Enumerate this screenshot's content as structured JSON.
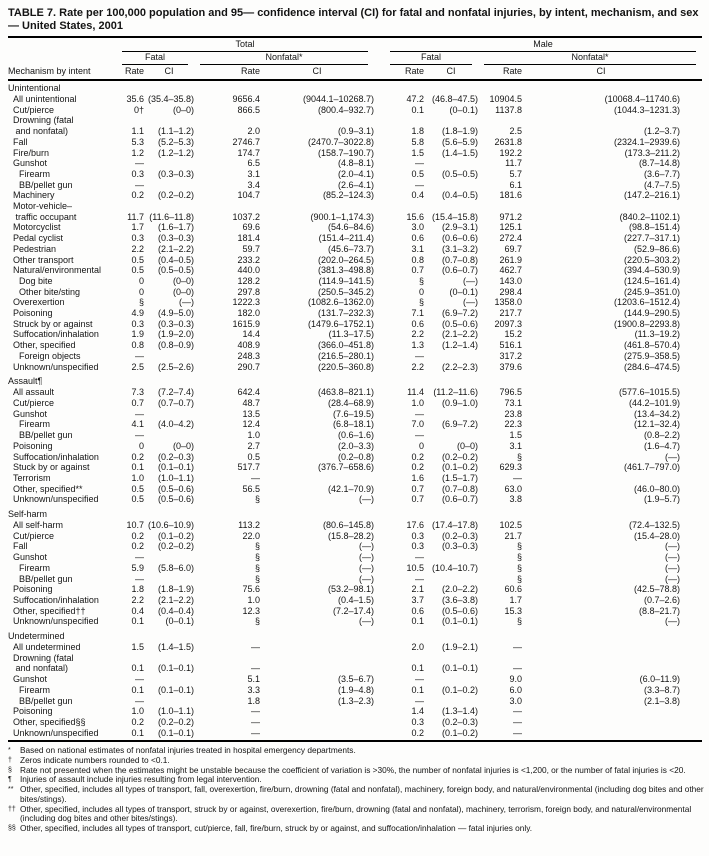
{
  "title": "TABLE 7. Rate per 100,000 population and 95— confidence interval (CI) for fatal and nonfatal injuries, by intent, mechanism, and sex — United States, 2001",
  "table_header": {
    "row_label": "Mechanism by intent",
    "col_groups": [
      {
        "label": "Total"
      },
      {
        "label": "Male"
      }
    ],
    "sub_groups": [
      "Fatal",
      "Nonfatal*"
    ],
    "leaf_cols": [
      "Rate",
      "CI"
    ]
  },
  "sections": [
    {
      "name": "Unintentional",
      "rows": [
        {
          "label": "All unintentional",
          "indent": 1,
          "cells": [
            "35.6",
            "(35.4–35.8)",
            "9656.4",
            "(9044.1–10268.7)",
            "47.2",
            "(46.8–47.5)",
            "10904.5",
            "(10068.4–11740.6)"
          ]
        },
        {
          "label": "Cut/pierce",
          "indent": 1,
          "cells": [
            "0†",
            "(0–0)",
            "866.5",
            "(800.4–932.7)",
            "0.1",
            "(0–0.1)",
            "1137.8",
            "(1044.3–1231.3)"
          ]
        },
        {
          "label": "Drowning (fatal\n and nonfatal)",
          "indent": 1,
          "cells": [
            "1.1",
            "(1.1–1.2)",
            "2.0",
            "(0.9–3.1)",
            "1.8",
            "(1.8–1.9)",
            "2.5",
            "(1.2–3.7)"
          ]
        },
        {
          "label": "Fall",
          "indent": 1,
          "cells": [
            "5.3",
            "(5.2–5.3)",
            "2746.7",
            "(2470.7–3022.8)",
            "5.8",
            "(5.6–5.9)",
            "2631.8",
            "(2324.1–2939.6)"
          ]
        },
        {
          "label": "Fire/burn",
          "indent": 1,
          "cells": [
            "1.2",
            "(1.2–1.2)",
            "174.7",
            "(158.7–190.7)",
            "1.5",
            "(1.4–1.5)",
            "192.2",
            "(173.3–211.2)"
          ]
        },
        {
          "label": "Gunshot",
          "indent": 1,
          "cells": [
            "—",
            "",
            "6.5",
            "(4.8–8.1)",
            "—",
            "",
            "11.7",
            "(8.7–14.8)"
          ]
        },
        {
          "label": "Firearm",
          "indent": 2,
          "cells": [
            "0.3",
            "(0.3–0.3)",
            "3.1",
            "(2.0–4.1)",
            "0.5",
            "(0.5–0.5)",
            "5.7",
            "(3.6–7.7)"
          ]
        },
        {
          "label": "BB/pellet gun",
          "indent": 2,
          "cells": [
            "—",
            "",
            "3.4",
            "(2.6–4.1)",
            "—",
            "",
            "6.1",
            "(4.7–7.5)"
          ]
        },
        {
          "label": "Machinery",
          "indent": 1,
          "cells": [
            "0.2",
            "(0.2–0.2)",
            "104.7",
            "(85.2–124.3)",
            "0.4",
            "(0.4–0.5)",
            "181.6",
            "(147.2–216.1)"
          ]
        },
        {
          "label": "Motor-vehicle–\n traffic occupant",
          "indent": 1,
          "cells": [
            "11.7",
            "(11.6–11.8)",
            "1037.2",
            "(900.1–1,174.3)",
            "15.6",
            "(15.4–15.8)",
            "971.2",
            "(840.2–1102.1)"
          ]
        },
        {
          "label": "Motorcyclist",
          "indent": 1,
          "cells": [
            "1.7",
            "(1.6–1.7)",
            "69.6",
            "(54.6–84.6)",
            "3.0",
            "(2.9–3.1)",
            "125.1",
            "(98.8–151.4)"
          ]
        },
        {
          "label": "Pedal cyclist",
          "indent": 1,
          "cells": [
            "0.3",
            "(0.3–0.3)",
            "181.4",
            "(151.4–211.4)",
            "0.6",
            "(0.6–0.6)",
            "272.4",
            "(227.7–317.1)"
          ]
        },
        {
          "label": "Pedestrian",
          "indent": 1,
          "cells": [
            "2.2",
            "(2.1–2.2)",
            "59.7",
            "(45.6–73.7)",
            "3.1",
            "(3.1–3.2)",
            "69.7",
            "(52.9–86.6)"
          ]
        },
        {
          "label": "Other transport",
          "indent": 1,
          "cells": [
            "0.5",
            "(0.4–0.5)",
            "233.2",
            "(202.0–264.5)",
            "0.8",
            "(0.7–0.8)",
            "261.9",
            "(220.5–303.2)"
          ]
        },
        {
          "label": "Natural/environmental",
          "indent": 1,
          "cells": [
            "0.5",
            "(0.5–0.5)",
            "440.0",
            "(381.3–498.8)",
            "0.7",
            "(0.6–0.7)",
            "462.7",
            "(394.4–530.9)"
          ]
        },
        {
          "label": "Dog bite",
          "indent": 2,
          "cells": [
            "0",
            "(0–0)",
            "128.2",
            "(114.9–141.5)",
            "§",
            "(—)",
            "143.0",
            "(124.5–161.4)"
          ]
        },
        {
          "label": "Other bite/sting",
          "indent": 2,
          "cells": [
            "0",
            "(0–0)",
            "297.8",
            "(250.5–345.2)",
            "0",
            "(0–0.1)",
            "298.4",
            "(245.9–351.0)"
          ]
        },
        {
          "label": "Overexertion",
          "indent": 1,
          "cells": [
            "§",
            "(—)",
            "1222.3",
            "(1082.6–1362.0)",
            "§",
            "(—)",
            "1358.0",
            "(1203.6–1512.4)"
          ]
        },
        {
          "label": "Poisoning",
          "indent": 1,
          "cells": [
            "4.9",
            "(4.9–5.0)",
            "182.0",
            "(131.7–232.3)",
            "7.1",
            "(6.9–7.2)",
            "217.7",
            "(144.9–290.5)"
          ]
        },
        {
          "label": "Struck by or against",
          "indent": 1,
          "cells": [
            "0.3",
            "(0.3–0.3)",
            "1615.9",
            "(1479.6–1752.1)",
            "0.6",
            "(0.5–0.6)",
            "2097.3",
            "(1900.8–2293.8)"
          ]
        },
        {
          "label": "Suffocation/inhalation",
          "indent": 1,
          "cells": [
            "1.9",
            "(1.9–2.0)",
            "14.4",
            "(11.3–17.5)",
            "2.2",
            "(2.1–2.2)",
            "15.2",
            "(11.3–19.2)"
          ]
        },
        {
          "label": "Other, specified",
          "indent": 1,
          "cells": [
            "0.8",
            "(0.8–0.9)",
            "408.9",
            "(366.0–451.8)",
            "1.3",
            "(1.2–1.4)",
            "516.1",
            "(461.8–570.4)"
          ]
        },
        {
          "label": "Foreign objects",
          "indent": 2,
          "cells": [
            "—",
            "",
            "248.3",
            "(216.5–280.1)",
            "—",
            "",
            "317.2",
            "(275.9–358.5)"
          ]
        },
        {
          "label": "Unknown/unspecified",
          "indent": 1,
          "cells": [
            "2.5",
            "(2.5–2.6)",
            "290.7",
            "(220.5–360.8)",
            "2.2",
            "(2.2–2.3)",
            "379.6",
            "(284.6–474.5)"
          ]
        }
      ]
    },
    {
      "name": "Assault¶",
      "rows": [
        {
          "label": "All assault",
          "indent": 1,
          "cells": [
            "7.3",
            "(7.2–7.4)",
            "642.4",
            "(463.8–821.1)",
            "11.4",
            "(11.2–11.6)",
            "796.5",
            "(577.6–1015.5)"
          ]
        },
        {
          "label": "Cut/pierce",
          "indent": 1,
          "cells": [
            "0.7",
            "(0.7–0.7)",
            "48.7",
            "(28.4–68.9)",
            "1.0",
            "(0.9–1.0)",
            "73.1",
            "(44.2–101.9)"
          ]
        },
        {
          "label": "Gunshot",
          "indent": 1,
          "cells": [
            "—",
            "",
            "13.5",
            "(7.6–19.5)",
            "—",
            "",
            "23.8",
            "(13.4–34.2)"
          ]
        },
        {
          "label": "Firearm",
          "indent": 2,
          "cells": [
            "4.1",
            "(4.0–4.2)",
            "12.4",
            "(6.8–18.1)",
            "7.0",
            "(6.9–7.2)",
            "22.3",
            "(12.1–32.4)"
          ]
        },
        {
          "label": "BB/pellet gun",
          "indent": 2,
          "cells": [
            "—",
            "",
            "1.0",
            "(0.6–1.6)",
            "—",
            "",
            "1.5",
            "(0.8–2.2)"
          ]
        },
        {
          "label": "Poisoning",
          "indent": 1,
          "cells": [
            "0",
            "(0–0)",
            "2.7",
            "(2.0–3.3)",
            "0",
            "(0–0)",
            "3.1",
            "(1.6–4.7)"
          ]
        },
        {
          "label": "Suffocation/inhalation",
          "indent": 1,
          "cells": [
            "0.2",
            "(0.2–0.3)",
            "0.5",
            "(0.2–0.8)",
            "0.2",
            "(0.2–0.2)",
            "§",
            "(—)"
          ]
        },
        {
          "label": "Stuck by or against",
          "indent": 1,
          "cells": [
            "0.1",
            "(0.1–0.1)",
            "517.7",
            "(376.7–658.6)",
            "0.2",
            "(0.1–0.2)",
            "629.3",
            "(461.7–797.0)"
          ]
        },
        {
          "label": "Terrorism",
          "indent": 1,
          "cells": [
            "1.0",
            "(1.0–1.1)",
            "—",
            "",
            "1.6",
            "(1.5–1.7)",
            "—",
            ""
          ]
        },
        {
          "label": "Other, specified**",
          "indent": 1,
          "cells": [
            "0.5",
            "(0.5–0.6)",
            "56.5",
            "(42.1–70.9)",
            "0.7",
            "(0.7–0.8)",
            "63.0",
            "(46.0–80.0)"
          ]
        },
        {
          "label": "Unknown/unspecified",
          "indent": 1,
          "cells": [
            "0.5",
            "(0.5–0.6)",
            "§",
            "(—)",
            "0.7",
            "(0.6–0.7)",
            "3.8",
            "(1.9–5.7)"
          ]
        }
      ]
    },
    {
      "name": "Self-harm",
      "rows": [
        {
          "label": "All self-harm",
          "indent": 1,
          "cells": [
            "10.7",
            "(10.6–10.9)",
            "113.2",
            "(80.6–145.8)",
            "17.6",
            "(17.4–17.8)",
            "102.5",
            "(72.4–132.5)"
          ]
        },
        {
          "label": "Cut/pierce",
          "indent": 1,
          "cells": [
            "0.2",
            "(0.1–0.2)",
            "22.0",
            "(15.8–28.2)",
            "0.3",
            "(0.2–0.3)",
            "21.7",
            "(15.4–28.0)"
          ]
        },
        {
          "label": "Fall",
          "indent": 1,
          "cells": [
            "0.2",
            "(0.2–0.2)",
            "§",
            "(—)",
            "0.3",
            "(0.3–0.3)",
            "§",
            "(—)"
          ]
        },
        {
          "label": "Gunshot",
          "indent": 1,
          "cells": [
            "—",
            "",
            "§",
            "(—)",
            "—",
            "",
            "§",
            "(—)"
          ]
        },
        {
          "label": "Firearm",
          "indent": 2,
          "cells": [
            "5.9",
            "(5.8–6.0)",
            "§",
            "(—)",
            "10.5",
            "(10.4–10.7)",
            "§",
            "(—)"
          ]
        },
        {
          "label": "BB/pellet gun",
          "indent": 2,
          "cells": [
            "—",
            "",
            "§",
            "(—)",
            "—",
            "",
            "§",
            "(—)"
          ]
        },
        {
          "label": "Poisoning",
          "indent": 1,
          "cells": [
            "1.8",
            "(1.8–1.9)",
            "75.6",
            "(53.2–98.1)",
            "2.1",
            "(2.0–2.2)",
            "60.6",
            "(42.5–78.8)"
          ]
        },
        {
          "label": "Suffocation/inhalation",
          "indent": 1,
          "cells": [
            "2.2",
            "(2.1–2.2)",
            "1.0",
            "(0.4–1.5)",
            "3.7",
            "(3.6–3.8)",
            "1.7",
            "(0.7–2.6)"
          ]
        },
        {
          "label": "Other, specified††",
          "indent": 1,
          "cells": [
            "0.4",
            "(0.4–0.4)",
            "12.3",
            "(7.2–17.4)",
            "0.6",
            "(0.5–0.6)",
            "15.3",
            "(8.8–21.7)"
          ]
        },
        {
          "label": "Unknown/unspecified",
          "indent": 1,
          "cells": [
            "0.1",
            "(0–0.1)",
            "§",
            "(—)",
            "0.1",
            "(0.1–0.1)",
            "§",
            "(—)"
          ]
        }
      ]
    },
    {
      "name": "Undetermined",
      "rows": [
        {
          "label": "All undetermined",
          "indent": 1,
          "cells": [
            "1.5",
            "(1.4–1.5)",
            "—",
            "",
            "2.0",
            "(1.9–2.1)",
            "—",
            ""
          ]
        },
        {
          "label": "Drowning (fatal\n and nonfatal)",
          "indent": 1,
          "cells": [
            "0.1",
            "(0.1–0.1)",
            "—",
            "",
            "0.1",
            "(0.1–0.1)",
            "—",
            ""
          ]
        },
        {
          "label": "Gunshot",
          "indent": 1,
          "cells": [
            "—",
            "",
            "5.1",
            "(3.5–6.7)",
            "—",
            "",
            "9.0",
            "(6.0–11.9)"
          ]
        },
        {
          "label": "Firearm",
          "indent": 2,
          "cells": [
            "0.1",
            "(0.1–0.1)",
            "3.3",
            "(1.9–4.8)",
            "0.1",
            "(0.1–0.2)",
            "6.0",
            "(3.3–8.7)"
          ]
        },
        {
          "label": "BB/pellet gun",
          "indent": 2,
          "cells": [
            "—",
            "",
            "1.8",
            "(1.3–2.3)",
            "—",
            "",
            "3.0",
            "(2.1–3.8)"
          ]
        },
        {
          "label": "Poisoning",
          "indent": 1,
          "cells": [
            "1.0",
            "(1.0–1.1)",
            "—",
            "",
            "1.4",
            "(1.3–1.4)",
            "—",
            ""
          ]
        },
        {
          "label": "Other, specified§§",
          "indent": 1,
          "cells": [
            "0.2",
            "(0.2–0.2)",
            "—",
            "",
            "0.3",
            "(0.2–0.3)",
            "—",
            ""
          ]
        },
        {
          "label": "Unknown/unspecified",
          "indent": 1,
          "cells": [
            "0.1",
            "(0.1–0.1)",
            "—",
            "",
            "0.2",
            "(0.1–0.2)",
            "—",
            ""
          ]
        }
      ]
    }
  ],
  "footnotes": [
    {
      "marker": "*",
      "text": "Based on national estimates of nonfatal injuries treated in hospital emergency departments."
    },
    {
      "marker": "†",
      "text": "Zeros indicate numbers rounded to <0.1."
    },
    {
      "marker": "§",
      "text": "Rate not presented when the estimates might be unstable because the coefficient of variation is >30%, the number of nonfatal injuries is <1,200, or the number of fatal injuries is <20."
    },
    {
      "marker": "¶",
      "text": "Injuries of assault include injuries resulting from legal intervention."
    },
    {
      "marker": "**",
      "text": "Other, specified, includes all types of transport, fall, overexertion, fire/burn, drowning (fatal and nonfatal), machinery, foreign body, and natural/environmental (including dog bites and other bites/stings)."
    },
    {
      "marker": "††",
      "text": "Other, specified, includes all types of transport, struck by or against, overexertion, fire/burn, drowning (fatal and nonfatal), machinery, terrorism, foreign body, and natural/environmental (including dog bites and other bites/stings)."
    },
    {
      "marker": "§§",
      "text": "Other, specified, includes all types of transport, cut/pierce, fall, fire/burn, struck by or against, and suffocation/inhalation — fatal injuries only."
    }
  ]
}
